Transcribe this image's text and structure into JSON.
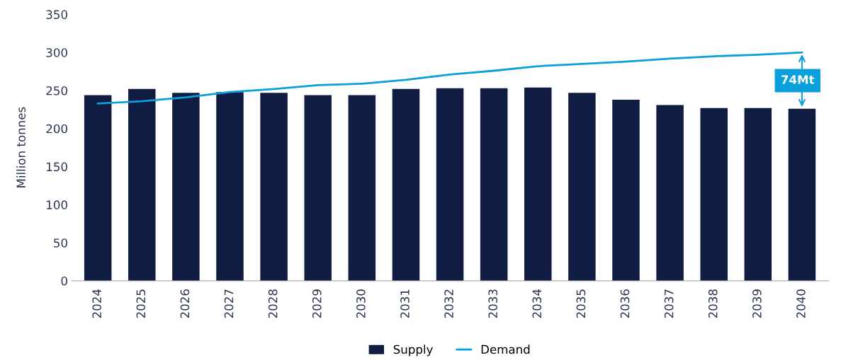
{
  "chart_data": {
    "type": "bar",
    "ylabel": "Million tonnes",
    "categories": [
      "2024",
      "2025",
      "2026",
      "2027",
      "2028",
      "2029",
      "2030",
      "2031",
      "2032",
      "2033",
      "2034",
      "2035",
      "2036",
      "2037",
      "2038",
      "2039",
      "2040"
    ],
    "series": [
      {
        "name": "Supply",
        "color": "#101c42",
        "values": [
          244,
          252,
          247,
          248,
          247,
          244,
          244,
          252,
          253,
          253,
          254,
          247,
          238,
          231,
          227,
          227,
          226
        ]
      },
      {
        "name": "Demand",
        "type": "line",
        "color": "#0aa0dc",
        "values": [
          233,
          236,
          241,
          248,
          252,
          257,
          259,
          264,
          271,
          276,
          282,
          285,
          288,
          292,
          295,
          297,
          300
        ]
      }
    ],
    "ylim": [
      0,
      350
    ],
    "yticks": [
      0,
      50,
      100,
      150,
      200,
      250,
      300,
      350
    ],
    "annotations": [
      "74Mt"
    ],
    "legend": "bottom",
    "grid": false,
    "marker": "none",
    "line_style": "solid"
  }
}
